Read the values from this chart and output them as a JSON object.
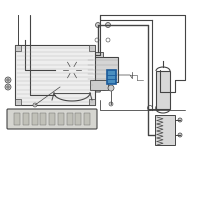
{
  "bg_color": "#ffffff",
  "border_color": "#dddddd",
  "line_color": "#999999",
  "dark_line": "#444444",
  "highlight_color": "#4a8fc0",
  "fig_bg": "#ffffff",
  "component_color": "#cccccc",
  "component_mid": "#aaaaaa",
  "component_dark": "#666666"
}
